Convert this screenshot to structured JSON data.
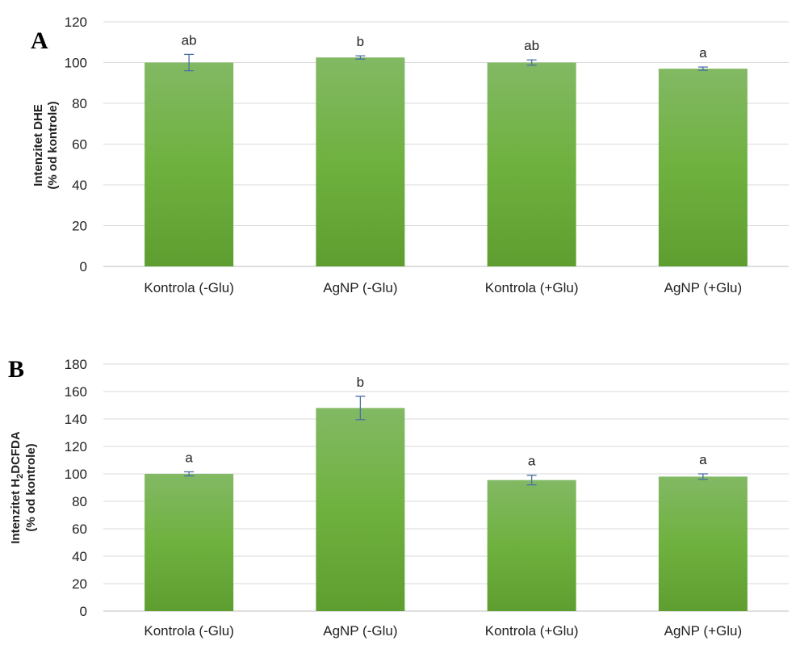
{
  "chart_data": [
    {
      "panel_label": "A",
      "type": "bar",
      "categories": [
        "Kontrola (-Glu)",
        "AgNP (-Glu)",
        "Kontrola (+Glu)",
        "AgNP (+Glu)"
      ],
      "values": [
        100,
        102.5,
        100,
        97
      ],
      "errors": [
        4,
        0.8,
        1.3,
        0.8
      ],
      "significance": [
        "ab",
        "b",
        "ab",
        "a"
      ],
      "ylabel_line1": "Intenzitet DHE",
      "ylabel_line2": "(% od kontrole)",
      "ylim": [
        0,
        120
      ],
      "yticks": [
        0,
        20,
        40,
        60,
        80,
        100,
        120
      ],
      "grid": true,
      "bar_color": "#6aaa3a"
    },
    {
      "panel_label": "B",
      "type": "bar",
      "categories": [
        "Kontrola (-Glu)",
        "AgNP (-Glu)",
        "Kontrola (+Glu)",
        "AgNP (+Glu)"
      ],
      "values": [
        100,
        148,
        95.5,
        98
      ],
      "errors": [
        1.5,
        8.5,
        3.5,
        2
      ],
      "significance": [
        "a",
        "b",
        "a",
        "a"
      ],
      "ylabel_pre": "Intenzitet H",
      "ylabel_sub": "2",
      "ylabel_post": "DCFDA",
      "ylabel_line2": "(% od kontrole)",
      "ylim": [
        0,
        180
      ],
      "yticks": [
        0,
        20,
        40,
        60,
        80,
        100,
        120,
        140,
        160,
        180
      ],
      "grid": true,
      "bar_color": "#6aaa3a"
    }
  ]
}
